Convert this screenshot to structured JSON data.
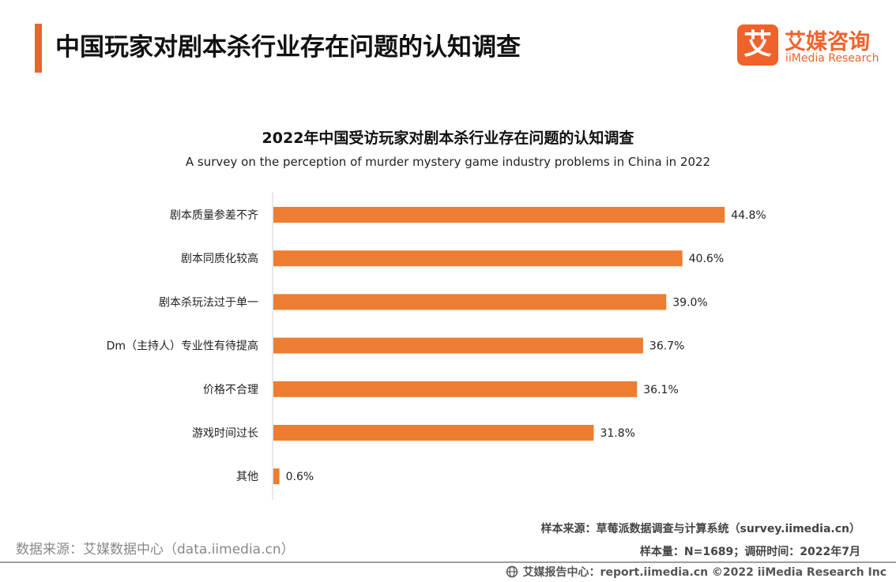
{
  "header": {
    "title": "中国玩家对剧本杀行业存在问题的认知调查"
  },
  "logo": {
    "mark": "艾",
    "cn": "艾媒咨询",
    "en": "iiMedia Research"
  },
  "colors": {
    "accent": "#f0622b",
    "bar": "#ed7d31"
  },
  "chart_data": {
    "type": "bar",
    "orientation": "horizontal",
    "title": "2022年中国受访玩家对剧本杀行业存在问题的认知调查",
    "subtitle": "A survey on the perception of murder mystery game industry problems in China in 2022",
    "categories": [
      "剧本质量参差不齐",
      "剧本同质化较高",
      "剧本杀玩法过于单一",
      "Dm（主持人）专业性有待提高",
      "价格不合理",
      "游戏时间过长",
      "其他"
    ],
    "values": [
      44.8,
      40.6,
      39.0,
      36.7,
      36.1,
      31.8,
      0.6
    ],
    "value_labels": [
      "44.8%",
      "40.6%",
      "39.0%",
      "36.7%",
      "36.1%",
      "31.8%",
      "0.6%"
    ],
    "unit": "%",
    "xlim": [
      0,
      50
    ],
    "grid": false,
    "legend": "none"
  },
  "footer": {
    "data_source": "数据来源：艾媒数据中心（data.iimedia.cn）",
    "sample_source": "样本来源：草莓派数据调查与计算系统（survey.iimedia.cn）",
    "sample_size": "样本量：N=1689；调研时间：2022年7月",
    "copyright": "艾媒报告中心：report.iimedia.cn  ©2022  iiMedia Research  Inc"
  },
  "icons": {
    "globe": "globe-icon"
  }
}
